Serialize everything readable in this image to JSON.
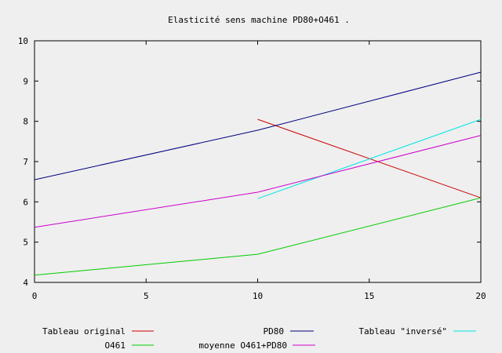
{
  "chart_data": {
    "type": "line",
    "title": "Elasticité sens machine PD80+O461 .",
    "xlim": [
      0,
      20
    ],
    "ylim": [
      4,
      10
    ],
    "x_ticks": [
      "0",
      "5",
      "10",
      "15",
      "20"
    ],
    "y_ticks": [
      "4",
      "5",
      "6",
      "7",
      "8",
      "9",
      "10"
    ],
    "grid": false,
    "legend_position": "bottom",
    "series": [
      {
        "name": "Tableau original",
        "color": "#cc0000",
        "x": [
          10,
          20
        ],
        "y": [
          8.05,
          6.1
        ]
      },
      {
        "name": "PD80",
        "color": "#000080",
        "x": [
          0,
          10,
          20
        ],
        "y": [
          6.55,
          7.78,
          9.22
        ]
      },
      {
        "name": "Tableau \"inversé\"",
        "color": "#00e5e5",
        "x": [
          10,
          20
        ],
        "y": [
          6.08,
          8.05
        ]
      },
      {
        "name": "O461",
        "color": "#00cc00",
        "x": [
          0,
          10,
          20
        ],
        "y": [
          4.18,
          4.7,
          6.1
        ]
      },
      {
        "name": "moyenne O461+PD80",
        "color": "#cc00cc",
        "x": [
          0,
          10,
          20
        ],
        "y": [
          5.37,
          6.24,
          7.65
        ]
      }
    ]
  }
}
